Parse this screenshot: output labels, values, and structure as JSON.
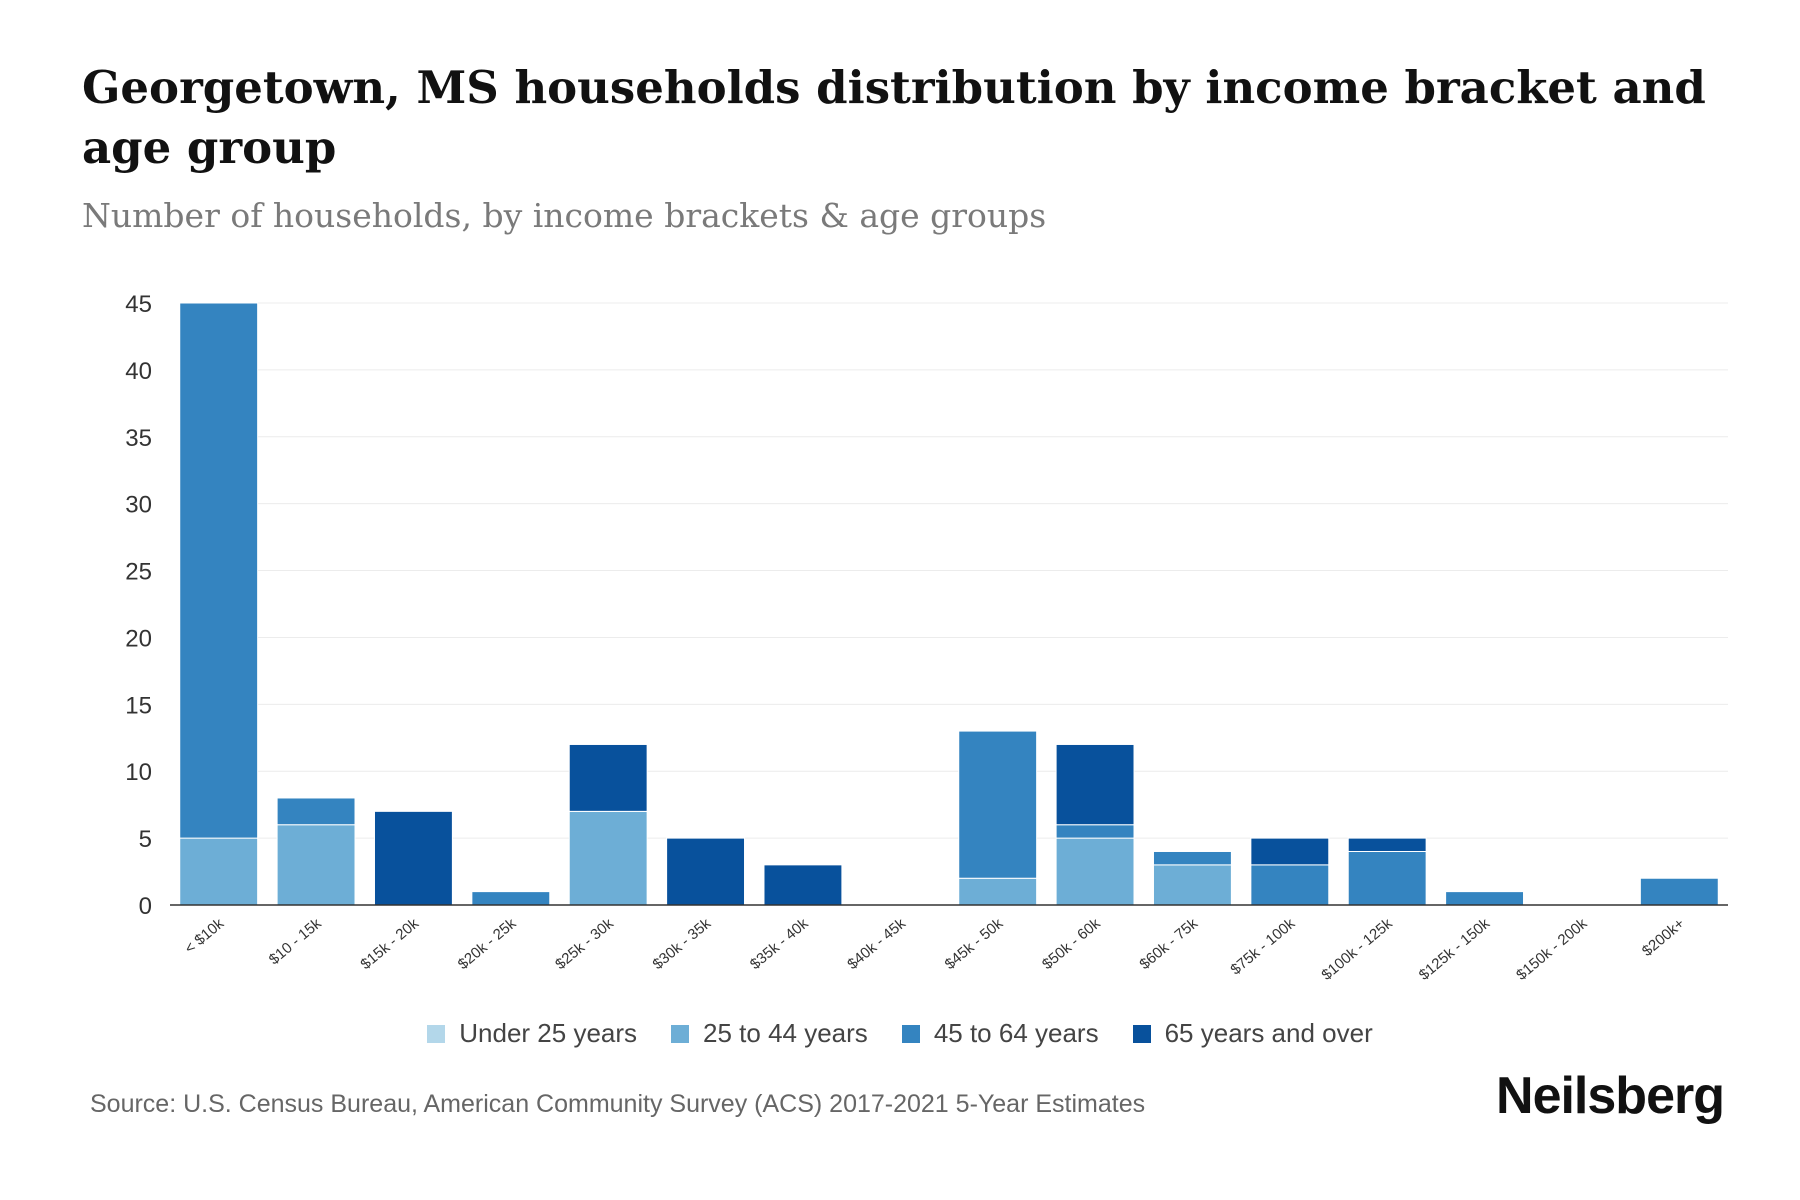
{
  "title": "Georgetown, MS households distribution by income bracket and age group",
  "subtitle": "Number of households, by income brackets & age groups",
  "source": "Source: U.S. Census Bureau, American Community Survey (ACS) 2017-2021 5-Year Estimates",
  "brand": "Neilsberg",
  "colors": {
    "under_25": "#b3d7ea",
    "age_25_44": "#6daed6",
    "age_45_64": "#3484c0",
    "age_65_over": "#08519c"
  },
  "chart_data": {
    "type": "bar",
    "stacked": true,
    "title": "Georgetown, MS households distribution by income bracket and age group",
    "subtitle": "Number of households, by income brackets & age groups",
    "xlabel": "",
    "ylabel": "",
    "ylim": [
      0,
      45
    ],
    "yticks": [
      0,
      5,
      10,
      15,
      20,
      25,
      30,
      35,
      40,
      45
    ],
    "grid": true,
    "legend_position": "bottom",
    "categories": [
      "< $10k",
      "$10 - 15k",
      "$15k - 20k",
      "$20k - 25k",
      "$25k - 30k",
      "$30k - 35k",
      "$35k - 40k",
      "$40k - 45k",
      "$45k - 50k",
      "$50k - 60k",
      "$60k - 75k",
      "$75k - 100k",
      "$100k - 125k",
      "$125k - 150k",
      "$150k - 200k",
      "$200k+"
    ],
    "series": [
      {
        "name": "Under 25 years",
        "color": "#b3d7ea",
        "values": [
          0,
          0,
          0,
          0,
          0,
          0,
          0,
          0,
          0,
          0,
          0,
          0,
          0,
          0,
          0,
          0
        ]
      },
      {
        "name": "25 to 44 years",
        "color": "#6daed6",
        "values": [
          5,
          6,
          0,
          0,
          7,
          0,
          0,
          0,
          2,
          5,
          3,
          0,
          0,
          0,
          0,
          0
        ]
      },
      {
        "name": "45 to 64 years",
        "color": "#3484c0",
        "values": [
          40,
          2,
          0,
          1,
          0,
          0,
          0,
          0,
          11,
          1,
          1,
          3,
          4,
          1,
          0,
          2
        ]
      },
      {
        "name": "65 years and over",
        "color": "#08519c",
        "values": [
          0,
          0,
          7,
          0,
          5,
          5,
          3,
          0,
          0,
          6,
          0,
          2,
          1,
          0,
          0,
          0
        ]
      }
    ]
  }
}
